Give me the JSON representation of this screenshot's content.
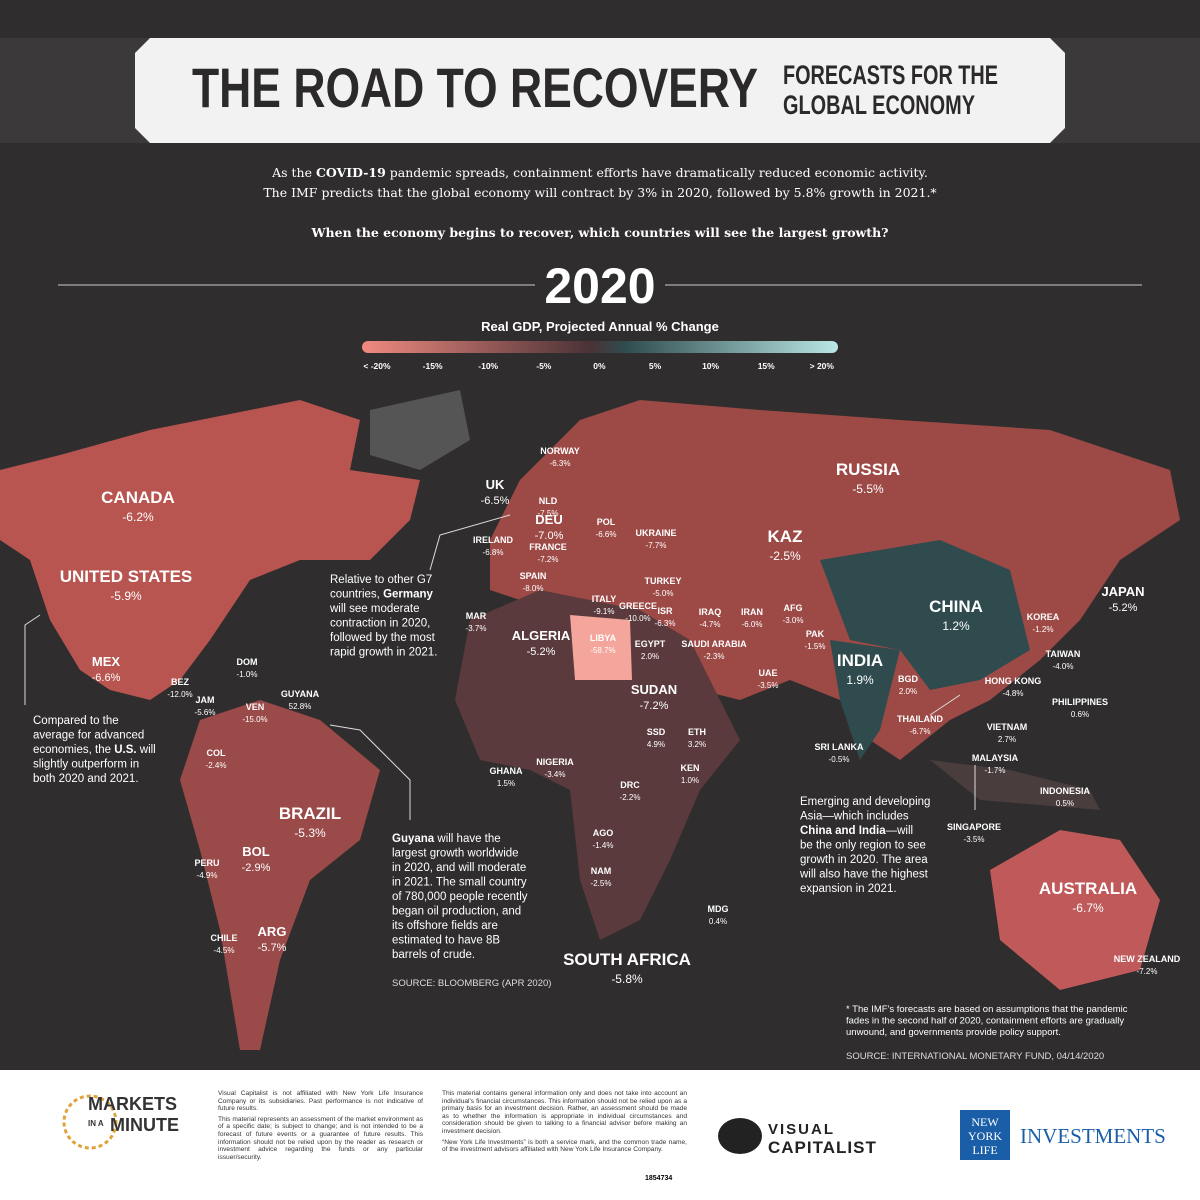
{
  "header": {
    "title": "THE ROAD TO RECOVERY",
    "subtitle": [
      "FORECASTS FOR THE",
      "GLOBAL ECONOMY"
    ]
  },
  "intro": {
    "lines": [
      [
        "As the ",
        "COVID-19",
        " pandemic spreads, containment efforts have dramatically reduced economic activity."
      ],
      [
        "The IMF predicts that the global economy will contract by 3% in 2020, followed by 5.8% growth in 2021.*"
      ]
    ],
    "question": "When the economy begins to recover, which countries will see the largest growth?"
  },
  "map": {
    "year": "2020",
    "legend_title": "Real GDP, Projected Annual % Change",
    "legend_ticks": [
      "< -20%",
      "-15%",
      "-10%",
      "-5%",
      "0%",
      "5%",
      "10%",
      "15%",
      "> 20%"
    ],
    "countries": [
      {
        "name": "CANADA",
        "value": "-6.2%"
      },
      {
        "name": "UNITED STATES",
        "value": "-5.9%"
      },
      {
        "name": "MEX",
        "value": "-6.6%"
      },
      {
        "name": "BEZ",
        "value": "-12.0%"
      },
      {
        "name": "DOM",
        "value": "-1.0%"
      },
      {
        "name": "JAM",
        "value": "-5.6%"
      },
      {
        "name": "VEN",
        "value": "-15.0%"
      },
      {
        "name": "GUYANA",
        "value": "52.8%"
      },
      {
        "name": "COL",
        "value": "-2.4%"
      },
      {
        "name": "BRAZIL",
        "value": "-5.3%"
      },
      {
        "name": "PERU",
        "value": "-4.9%"
      },
      {
        "name": "BOL",
        "value": "-2.9%"
      },
      {
        "name": "CHILE",
        "value": "-4.5%"
      },
      {
        "name": "ARG",
        "value": "-5.7%"
      },
      {
        "name": "UK",
        "value": "-6.5%"
      },
      {
        "name": "NORWAY",
        "value": "-6.3%"
      },
      {
        "name": "NLD",
        "value": "-7.5%"
      },
      {
        "name": "DEU",
        "value": "-7.0%"
      },
      {
        "name": "POL",
        "value": "-6.6%"
      },
      {
        "name": "UKRAINE",
        "value": "-7.7%"
      },
      {
        "name": "IRELAND",
        "value": "-6.8%"
      },
      {
        "name": "FRANCE",
        "value": "-7.2%"
      },
      {
        "name": "SPAIN",
        "value": "-8.0%"
      },
      {
        "name": "ITALY",
        "value": "-9.1%"
      },
      {
        "name": "GREECE",
        "value": "-10.0%"
      },
      {
        "name": "TURKEY",
        "value": "-5.0%"
      },
      {
        "name": "ISR",
        "value": "-6.3%"
      },
      {
        "name": "MAR",
        "value": "-3.7%"
      },
      {
        "name": "ALGERIA",
        "value": "-5.2%"
      },
      {
        "name": "LIBYA",
        "value": "-58.7%"
      },
      {
        "name": "EGYPT",
        "value": "2.0%"
      },
      {
        "name": "IRAQ",
        "value": "-4.7%"
      },
      {
        "name": "IRAN",
        "value": "-6.0%"
      },
      {
        "name": "AFG",
        "value": "-3.0%"
      },
      {
        "name": "PAK",
        "value": "-1.5%"
      },
      {
        "name": "SAUDI ARABIA",
        "value": "-2.3%"
      },
      {
        "name": "UAE",
        "value": "-3.5%"
      },
      {
        "name": "KAZ",
        "value": "-2.5%"
      },
      {
        "name": "RUSSIA",
        "value": "-5.5%"
      },
      {
        "name": "CHINA",
        "value": "1.2%"
      },
      {
        "name": "INDIA",
        "value": "1.9%"
      },
      {
        "name": "JAPAN",
        "value": "-5.2%"
      },
      {
        "name": "KOREA",
        "value": "-1.2%"
      },
      {
        "name": "TAIWAN",
        "value": "-4.0%"
      },
      {
        "name": "BGD",
        "value": "2.0%"
      },
      {
        "name": "HONG KONG",
        "value": "-4.8%"
      },
      {
        "name": "PHILIPPINES",
        "value": "0.6%"
      },
      {
        "name": "THAILAND",
        "value": "-6.7%"
      },
      {
        "name": "VIETNAM",
        "value": "2.7%"
      },
      {
        "name": "SRI LANKA",
        "value": "-0.5%"
      },
      {
        "name": "MALAYSIA",
        "value": "-1.7%"
      },
      {
        "name": "INDONESIA",
        "value": "0.5%"
      },
      {
        "name": "SINGAPORE",
        "value": "-3.5%"
      },
      {
        "name": "SUDAN",
        "value": "-7.2%"
      },
      {
        "name": "SSD",
        "value": "4.9%"
      },
      {
        "name": "ETH",
        "value": "3.2%"
      },
      {
        "name": "GHANA",
        "value": "1.5%"
      },
      {
        "name": "NIGERIA",
        "value": "-3.4%"
      },
      {
        "name": "KEN",
        "value": "1.0%"
      },
      {
        "name": "DRC",
        "value": "-2.2%"
      },
      {
        "name": "AGO",
        "value": "-1.4%"
      },
      {
        "name": "NAM",
        "value": "-2.5%"
      },
      {
        "name": "SOUTH AFRICA",
        "value": "-5.8%"
      },
      {
        "name": "MDG",
        "value": "0.4%"
      },
      {
        "name": "AUSTRALIA",
        "value": "-6.7%"
      },
      {
        "name": "NEW ZEALAND",
        "value": "-7.2%"
      }
    ],
    "annotations": [
      {
        "lines": [
          [
            "Relative to other G7"
          ],
          [
            "countries, ",
            "Germany"
          ],
          [
            "will see moderate"
          ],
          [
            "contraction in 2020,"
          ],
          [
            "followed by the most"
          ],
          [
            "rapid growth in 2021."
          ]
        ]
      },
      {
        "lines": [
          [
            "Compared to the"
          ],
          [
            "average for advanced"
          ],
          [
            "economies, the ",
            "U.S.",
            " will"
          ],
          [
            "slightly outperform in"
          ],
          [
            "both 2020 and 2021."
          ]
        ]
      },
      {
        "lines": [
          [
            "",
            "Guyana",
            " will have the"
          ],
          [
            "largest growth worldwide"
          ],
          [
            "in 2020, and will moderate"
          ],
          [
            "in 2021. The small country"
          ],
          [
            "of 780,000 people recently"
          ],
          [
            "began oil production, and"
          ],
          [
            "its offshore fields are"
          ],
          [
            "estimated to have 8B"
          ],
          [
            "barrels of crude."
          ]
        ]
      },
      {
        "lines": [
          [
            "Emerging and developing"
          ],
          [
            "Asia—which includes"
          ],
          [
            "",
            "China and India",
            "—will"
          ],
          [
            "be the only region to see"
          ],
          [
            "growth in 2020. The area"
          ],
          [
            "will also have the highest"
          ],
          [
            "expansion in 2021."
          ]
        ]
      },
      {
        "lines": [
          [
            "* The IMF's forecasts are based on assumptions that the pandemic"
          ],
          [
            "fades in the second half of 2020, containment efforts are gradually"
          ],
          [
            "unwound, and governments provide policy support."
          ]
        ]
      }
    ],
    "sources": [
      "SOURCE: BLOOMBERG (APR 2020)",
      "SOURCE: INTERNATIONAL MONETARY FUND, 04/14/2020"
    ]
  },
  "footer": {
    "logo": [
      "MARKETS",
      "IN A",
      "MINUTE"
    ],
    "disclaimer_1": [
      "Visual Capitalist is not affiliated with New York Life Insurance Company or its subsidiaries. Past performance is not indicative of future results.",
      "This material represents an assessment of the market environment as of a specific date; is subject to change; and is not intended to be a forecast of future events or a guarantee of future results. This information should not be relied upon by the reader as research or investment advice regarding the funds or any particular issuer/security."
    ],
    "disclaimer_2": [
      "This material contains general information only and does not take into account an individual's financial circumstances. This information should not be relied upon as a primary basis for an investment decision. Rather, an assessment should be made as to whether the information is appropriate in individual circumstances and consideration should be given to talking to a financial advisor before making an investment decision.",
      "“New York Life Investments” is both a service mark, and the common trade name, of the investment advisors affiliated with New York Life Insurance Company."
    ],
    "code": "1854734",
    "visual_capitalist": [
      "VISUAL",
      "CAPITALIST"
    ],
    "nyl": [
      "NEW",
      "YORK",
      "LIFE"
    ],
    "investments": "INVESTMENTS"
  }
}
